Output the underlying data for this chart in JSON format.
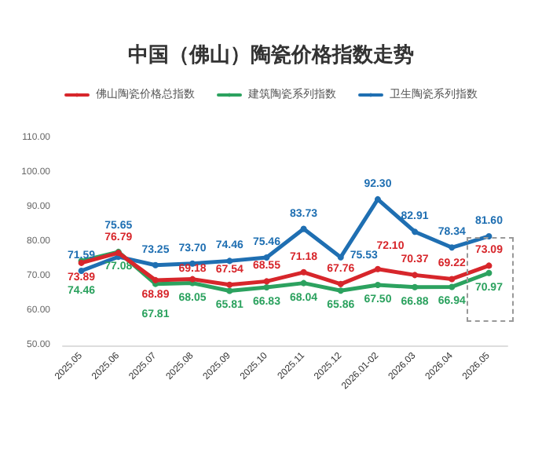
{
  "chart_data": {
    "type": "line",
    "title": "中国（佛山）陶瓷价格指数走势",
    "categories": [
      "2025.05",
      "2025.06",
      "2025.07",
      "2025.08",
      "2025.09",
      "2025.10",
      "2025.11",
      "2025.12",
      "2026.01-02",
      "2026.03",
      "2026.04",
      "2026.05"
    ],
    "series": [
      {
        "name": "佛山陶瓷价格总指数",
        "color": "#d7262b",
        "values": [
          73.89,
          76.79,
          68.89,
          69.18,
          67.54,
          68.55,
          71.18,
          67.76,
          72.1,
          70.37,
          69.22,
          73.09
        ]
      },
      {
        "name": "建筑陶瓷系列指数",
        "color": "#2ca25f",
        "values": [
          74.46,
          77.08,
          67.81,
          68.05,
          65.81,
          66.83,
          68.04,
          65.86,
          67.5,
          66.88,
          66.94,
          70.97
        ]
      },
      {
        "name": "卫生陶瓷系列指数",
        "color": "#1f6fb2",
        "values": [
          71.59,
          75.65,
          73.25,
          73.7,
          74.46,
          75.46,
          83.73,
          75.53,
          92.3,
          82.91,
          78.34,
          81.6
        ]
      }
    ],
    "ylim": [
      50,
      110
    ],
    "yticks": [
      {
        "value": 50,
        "label": "50.00"
      },
      {
        "value": 60,
        "label": "60.00"
      },
      {
        "value": 70,
        "label": "70.00"
      },
      {
        "value": 80,
        "label": "80.00"
      },
      {
        "value": 90,
        "label": "90.00"
      },
      {
        "value": 100,
        "label": "100.00"
      },
      {
        "value": 110,
        "label": "110.00"
      }
    ],
    "value_labels": [
      [
        "73.89",
        "76.79",
        "68.89",
        "69.18",
        "67.54",
        "68.55",
        "71.18",
        "67.76",
        "72.10",
        "70.37",
        "69.22",
        "73.09"
      ],
      [
        "74.46",
        "77.08",
        "67.81",
        "68.05",
        "65.81",
        "66.83",
        "68.04",
        "65.86",
        "67.50",
        "66.88",
        "66.94",
        "70.97"
      ],
      [
        "71.59",
        "75.65",
        "73.25",
        "73.70",
        "74.46",
        "75.46",
        "83.73",
        "75.53",
        "92.30",
        "82.91",
        "78.34",
        "81.60"
      ]
    ],
    "legend": "top",
    "grid": false,
    "marker": "circle",
    "line_style": "solid"
  }
}
